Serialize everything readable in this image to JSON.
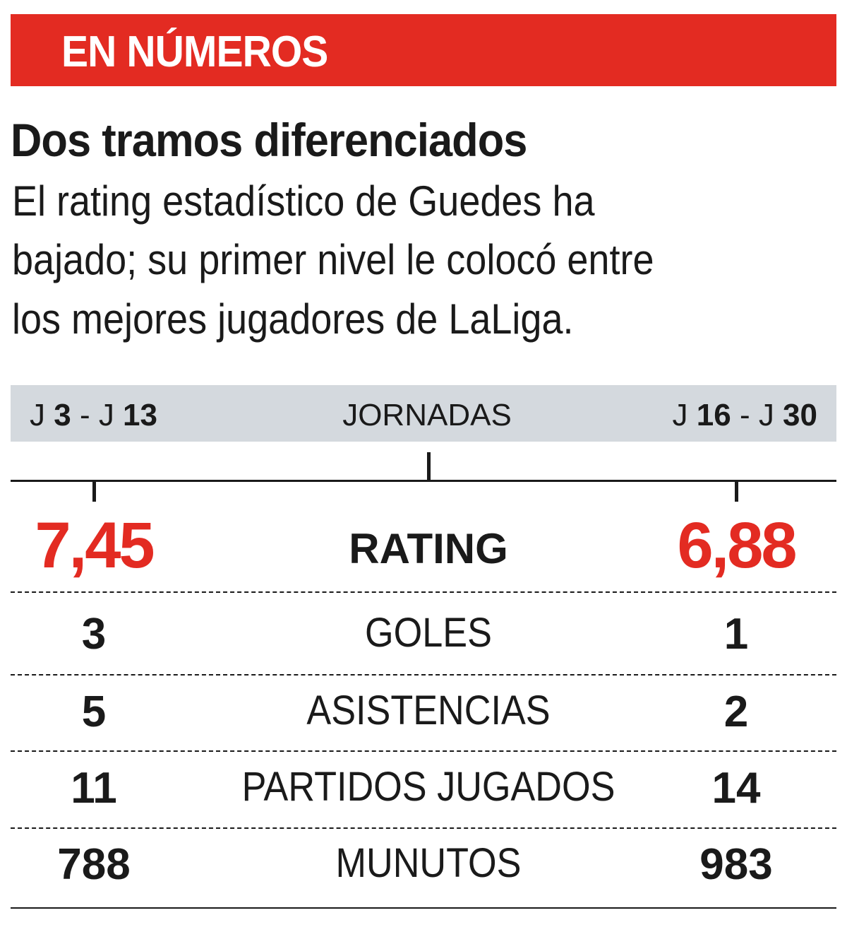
{
  "banner": {
    "label": "EN NÚMEROS",
    "color": "#e32b22"
  },
  "headline": "Dos tramos diferenciados",
  "subtitle_lines": [
    "El rating estadístico de Guedes ha",
    "bajado; su primer nivel le colocó entre",
    "los mejores jugadores de LaLiga."
  ],
  "header": {
    "left": {
      "j1_prefix": "J ",
      "j1": "3",
      "sep": " - J ",
      "j2": "13"
    },
    "center": "JORNADAS",
    "right": {
      "j1_prefix": "J ",
      "j1": "16",
      "sep": " - J ",
      "j2": "30"
    }
  },
  "rows": [
    {
      "label": "RATING",
      "left": "7,45",
      "right": "6,88"
    },
    {
      "label": "GOLES",
      "left": "3",
      "right": "1"
    },
    {
      "label": "ASISTENCIAS",
      "left": "5",
      "right": "2"
    },
    {
      "label": "PARTIDOS JUGADOS",
      "left": "11",
      "right": "14"
    },
    {
      "label": "MUNUTOS",
      "left": "788",
      "right": "983"
    }
  ]
}
